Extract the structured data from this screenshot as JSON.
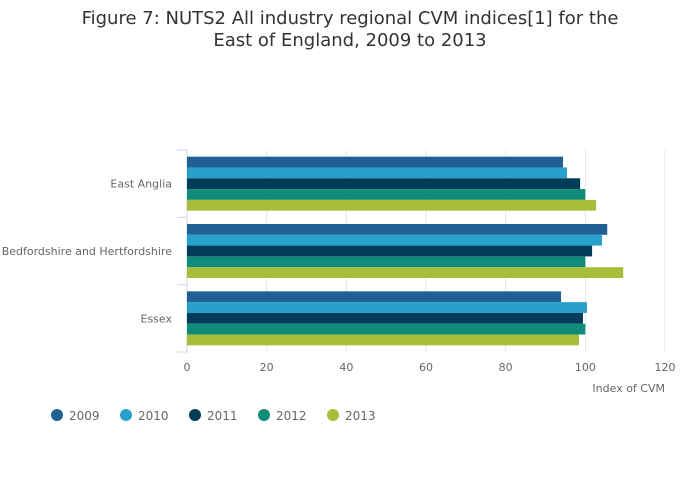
{
  "chart_data": {
    "type": "bar",
    "orientation": "horizontal",
    "title": "Figure 7: NUTS2 All industry regional CVM indices[1] for the East of England, 2009 to 2013",
    "categories": [
      "East Anglia",
      "Bedfordshire and Hertfordshire",
      "Essex"
    ],
    "series": [
      {
        "name": "2009",
        "color": "#206095",
        "values": [
          94.4,
          105.5,
          93.9
        ]
      },
      {
        "name": "2010",
        "color": "#27a0cc",
        "values": [
          95.4,
          104.2,
          100.4
        ]
      },
      {
        "name": "2011",
        "color": "#003c57",
        "values": [
          98.7,
          101.7,
          99.4
        ]
      },
      {
        "name": "2012",
        "color": "#118c7b",
        "values": [
          100.0,
          100.0,
          100.0
        ]
      },
      {
        "name": "2013",
        "color": "#a8bd3a",
        "values": [
          102.7,
          109.5,
          98.4
        ]
      }
    ],
    "xlabel": "Index of CVM",
    "ylabel": "",
    "xlim": [
      0,
      120
    ],
    "xticks": [
      0,
      20,
      40,
      60,
      80,
      100,
      120
    ],
    "grid": true,
    "legend": "bottom-left"
  }
}
